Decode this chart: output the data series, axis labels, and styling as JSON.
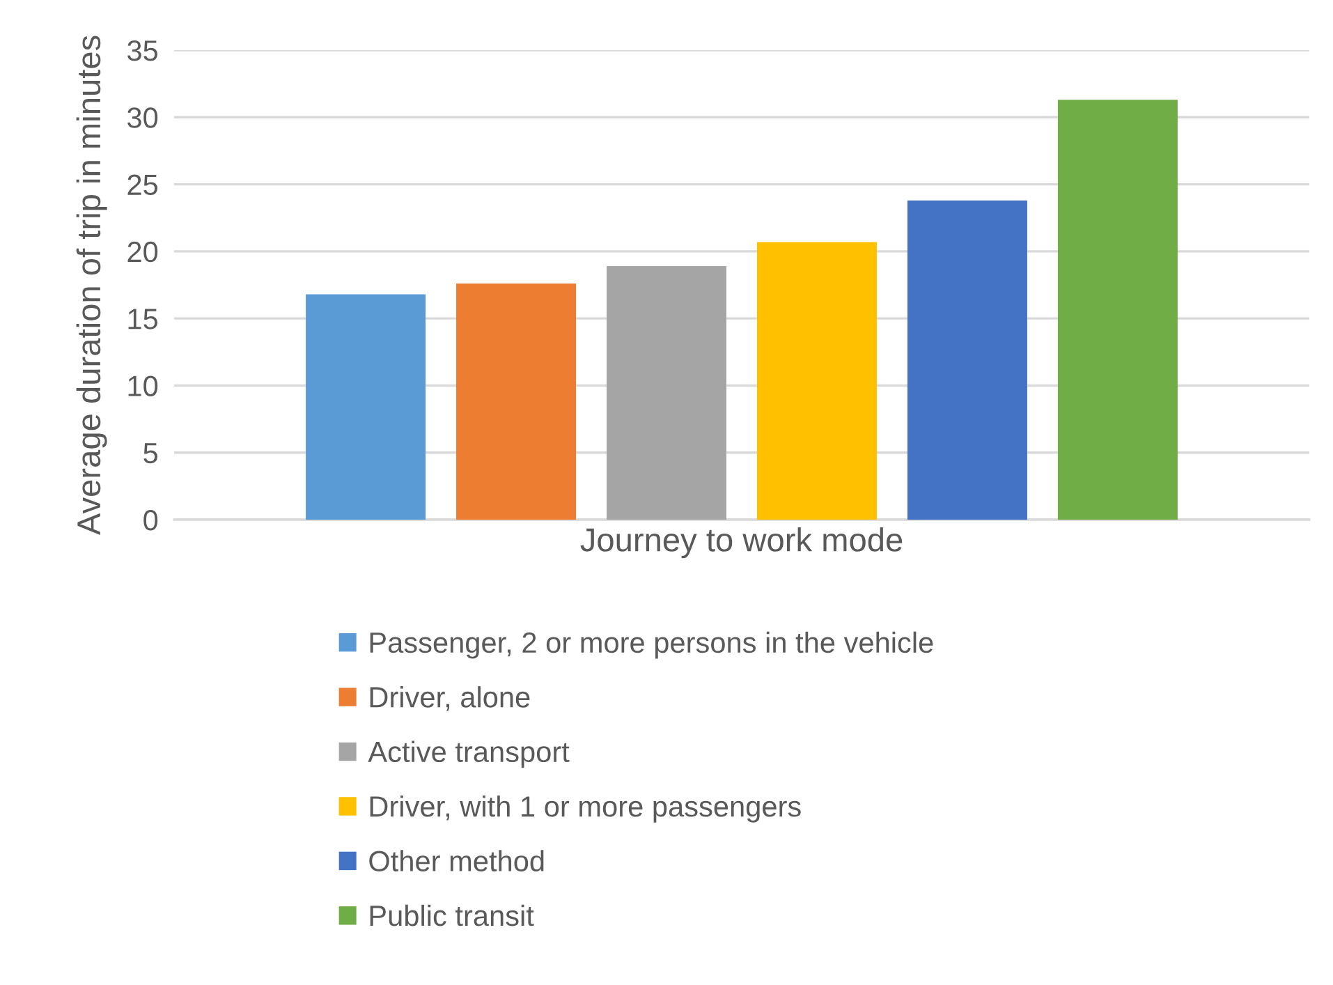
{
  "chart_data": {
    "type": "bar",
    "ylabel": "Average duration of trip in minutes",
    "categories": [
      "Journey to work mode"
    ],
    "series": [
      {
        "name": "Passenger, 2 or more persons in the vehicle",
        "color": "#5b9bd5",
        "values": [
          16.8
        ]
      },
      {
        "name": "Driver, alone",
        "color": "#ed7d31",
        "values": [
          17.6
        ]
      },
      {
        "name": "Active transport",
        "color": "#a5a5a5",
        "values": [
          18.9
        ]
      },
      {
        "name": "Driver, with 1 or more passengers",
        "color": "#ffc000",
        "values": [
          20.7
        ]
      },
      {
        "name": "Other method",
        "color": "#4472c4",
        "values": [
          23.8
        ]
      },
      {
        "name": "Public transit",
        "color": "#70ad47",
        "values": [
          31.3
        ]
      }
    ],
    "ylim": [
      0,
      35
    ],
    "yticks": [
      0,
      5,
      10,
      15,
      20,
      25,
      30,
      35
    ],
    "grid": "y",
    "legend": "bottom"
  }
}
